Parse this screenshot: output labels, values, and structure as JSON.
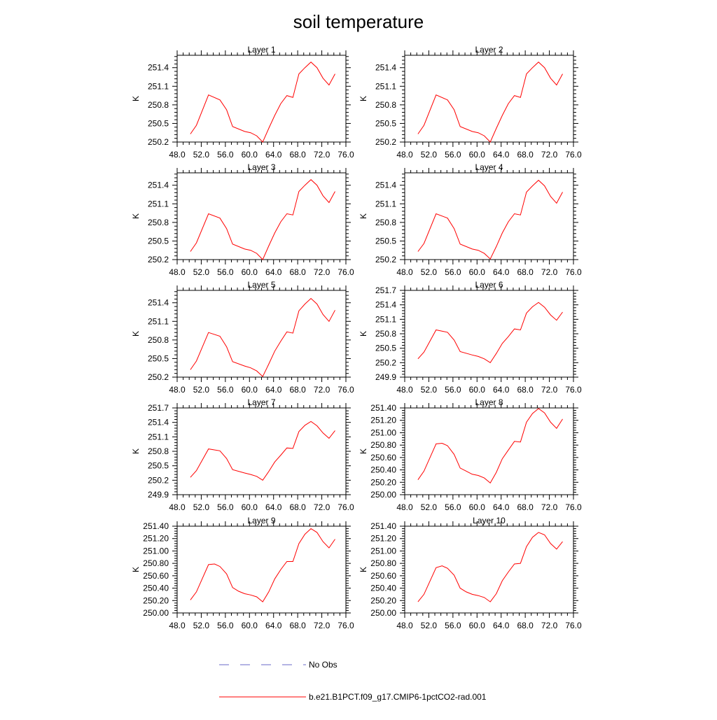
{
  "title": "soil temperature",
  "legend": {
    "obs_label": "No Obs",
    "model_label": "b.e21.B1PCT.f09_g17.CMIP6-1pctCO2-rad.001",
    "obs_color": "#6a6ac8",
    "model_color": "#ff0000"
  },
  "chart_data": [
    {
      "type": "line",
      "title": "Layer 1",
      "ylabel": "K",
      "xlim": [
        48,
        76
      ],
      "ylim": [
        250.2,
        251.6
      ],
      "xticks": [
        "48.0",
        "52.0",
        "56.0",
        "60.0",
        "64.0",
        "68.0",
        "72.0",
        "76.0"
      ],
      "yticks": [
        "250.2",
        "250.5",
        "250.8",
        "251.1",
        "251.4"
      ],
      "x": [
        50.2,
        51.2,
        53.2,
        55.1,
        56.2,
        57.2,
        59.2,
        60.2,
        61.2,
        62.2,
        63.2,
        64.2,
        65.2,
        66.2,
        67.2,
        68.2,
        69.2,
        70.2,
        71.2,
        72.2,
        73.2,
        74.2
      ],
      "series": [
        {
          "name": "b.e21.B1PCT.f09_g17.CMIP6-1pctCO2-rad.001",
          "values": [
            250.33,
            250.47,
            250.96,
            250.88,
            250.72,
            250.45,
            250.37,
            250.35,
            250.3,
            250.2,
            250.42,
            250.63,
            250.82,
            250.95,
            250.92,
            251.3,
            251.4,
            251.49,
            251.4,
            251.23,
            251.12,
            251.3
          ]
        }
      ]
    },
    {
      "type": "line",
      "title": "Layer 2",
      "ylabel": "K",
      "xlim": [
        48,
        76
      ],
      "ylim": [
        250.2,
        251.6
      ],
      "xticks": [
        "48.0",
        "52.0",
        "56.0",
        "60.0",
        "64.0",
        "68.0",
        "72.0",
        "76.0"
      ],
      "yticks": [
        "250.2",
        "250.5",
        "250.8",
        "251.1",
        "251.4"
      ],
      "x": [
        50.2,
        51.2,
        53.2,
        55.1,
        56.2,
        57.2,
        59.2,
        60.2,
        61.2,
        62.2,
        63.2,
        64.2,
        65.2,
        66.2,
        67.2,
        68.2,
        69.2,
        70.2,
        71.2,
        72.2,
        73.2,
        74.2
      ],
      "series": [
        {
          "name": "b.e21.B1PCT.f09_g17.CMIP6-1pctCO2-rad.001",
          "values": [
            250.33,
            250.47,
            250.96,
            250.88,
            250.72,
            250.45,
            250.37,
            250.35,
            250.3,
            250.2,
            250.42,
            250.63,
            250.82,
            250.95,
            250.92,
            251.3,
            251.4,
            251.49,
            251.4,
            251.23,
            251.12,
            251.3
          ]
        }
      ]
    },
    {
      "type": "line",
      "title": "Layer 3",
      "ylabel": "K",
      "xlim": [
        48,
        76
      ],
      "ylim": [
        250.2,
        251.6
      ],
      "xticks": [
        "48.0",
        "52.0",
        "56.0",
        "60.0",
        "64.0",
        "68.0",
        "72.0",
        "76.0"
      ],
      "yticks": [
        "250.2",
        "250.5",
        "250.8",
        "251.1",
        "251.4"
      ],
      "x": [
        50.2,
        51.2,
        53.2,
        55.1,
        56.2,
        57.2,
        59.2,
        60.2,
        61.2,
        62.2,
        63.2,
        64.2,
        65.2,
        66.2,
        67.2,
        68.2,
        69.2,
        70.2,
        71.2,
        72.2,
        73.2,
        74.2
      ],
      "series": [
        {
          "name": "b.e21.B1PCT.f09_g17.CMIP6-1pctCO2-rad.001",
          "values": [
            250.33,
            250.47,
            250.94,
            250.87,
            250.7,
            250.45,
            250.37,
            250.35,
            250.3,
            250.2,
            250.42,
            250.63,
            250.81,
            250.94,
            250.92,
            251.3,
            251.4,
            251.49,
            251.4,
            251.23,
            251.12,
            251.3
          ]
        }
      ]
    },
    {
      "type": "line",
      "title": "Layer 4",
      "ylabel": "K",
      "xlim": [
        48,
        76
      ],
      "ylim": [
        250.2,
        251.6
      ],
      "xticks": [
        "48.0",
        "52.0",
        "56.0",
        "60.0",
        "64.0",
        "68.0",
        "72.0",
        "76.0"
      ],
      "yticks": [
        "250.2",
        "250.5",
        "250.8",
        "251.1",
        "251.4"
      ],
      "x": [
        50.2,
        51.2,
        53.2,
        55.1,
        56.2,
        57.2,
        59.2,
        60.2,
        61.2,
        62.2,
        63.2,
        64.2,
        65.2,
        66.2,
        67.2,
        68.2,
        69.2,
        70.2,
        71.2,
        72.2,
        73.2,
        74.2
      ],
      "series": [
        {
          "name": "b.e21.B1PCT.f09_g17.CMIP6-1pctCO2-rad.001",
          "values": [
            250.33,
            250.46,
            250.94,
            250.87,
            250.7,
            250.45,
            250.37,
            250.35,
            250.3,
            250.21,
            250.41,
            250.63,
            250.81,
            250.94,
            250.92,
            251.29,
            251.39,
            251.48,
            251.39,
            251.22,
            251.11,
            251.29
          ]
        }
      ]
    },
    {
      "type": "line",
      "title": "Layer 5",
      "ylabel": "K",
      "xlim": [
        48,
        76
      ],
      "ylim": [
        250.2,
        251.6
      ],
      "xticks": [
        "48.0",
        "52.0",
        "56.0",
        "60.0",
        "64.0",
        "68.0",
        "72.0",
        "76.0"
      ],
      "yticks": [
        "250.2",
        "250.5",
        "250.8",
        "251.1",
        "251.4"
      ],
      "x": [
        50.2,
        51.2,
        53.2,
        55.1,
        56.2,
        57.2,
        59.2,
        60.2,
        61.2,
        62.2,
        63.2,
        64.2,
        65.2,
        66.2,
        67.2,
        68.2,
        69.2,
        70.2,
        71.2,
        72.2,
        73.2,
        74.2
      ],
      "series": [
        {
          "name": "b.e21.B1PCT.f09_g17.CMIP6-1pctCO2-rad.001",
          "values": [
            250.32,
            250.46,
            250.92,
            250.86,
            250.69,
            250.45,
            250.38,
            250.35,
            250.3,
            250.21,
            250.41,
            250.62,
            250.78,
            250.93,
            250.91,
            251.27,
            251.38,
            251.47,
            251.38,
            251.21,
            251.1,
            251.28
          ]
        }
      ]
    },
    {
      "type": "line",
      "title": "Layer 6",
      "ylabel": "K",
      "xlim": [
        48,
        76
      ],
      "ylim": [
        249.9,
        251.7
      ],
      "xticks": [
        "48.0",
        "52.0",
        "56.0",
        "60.0",
        "64.0",
        "68.0",
        "72.0",
        "76.0"
      ],
      "yticks": [
        "249.9",
        "250.2",
        "250.5",
        "250.8",
        "251.1",
        "251.4",
        "251.7"
      ],
      "x": [
        50.2,
        51.2,
        53.2,
        55.1,
        56.2,
        57.2,
        59.2,
        60.2,
        61.2,
        62.2,
        63.2,
        64.2,
        65.2,
        66.2,
        67.2,
        68.2,
        69.2,
        70.2,
        71.2,
        72.2,
        73.2,
        74.2
      ],
      "series": [
        {
          "name": "b.e21.B1PCT.f09_g17.CMIP6-1pctCO2-rad.001",
          "values": [
            250.28,
            250.42,
            250.88,
            250.83,
            250.67,
            250.43,
            250.36,
            250.33,
            250.28,
            250.2,
            250.39,
            250.6,
            250.74,
            250.9,
            250.88,
            251.23,
            251.36,
            251.45,
            251.35,
            251.19,
            251.08,
            251.25
          ]
        }
      ]
    },
    {
      "type": "line",
      "title": "Layer 7",
      "ylabel": "K",
      "xlim": [
        48,
        76
      ],
      "ylim": [
        249.9,
        251.7
      ],
      "xticks": [
        "48.0",
        "52.0",
        "56.0",
        "60.0",
        "64.0",
        "68.0",
        "72.0",
        "76.0"
      ],
      "yticks": [
        "249.9",
        "250.2",
        "250.5",
        "250.8",
        "251.1",
        "251.4",
        "251.7"
      ],
      "x": [
        50.2,
        51.2,
        53.2,
        55.1,
        56.2,
        57.2,
        59.2,
        60.2,
        61.2,
        62.2,
        63.2,
        64.2,
        65.2,
        66.2,
        67.2,
        68.2,
        69.2,
        70.2,
        71.2,
        72.2,
        73.2,
        74.2
      ],
      "series": [
        {
          "name": "b.e21.B1PCT.f09_g17.CMIP6-1pctCO2-rad.001",
          "values": [
            250.26,
            250.4,
            250.85,
            250.81,
            250.65,
            250.42,
            250.35,
            250.32,
            250.28,
            250.2,
            250.38,
            250.58,
            250.72,
            250.87,
            250.86,
            251.21,
            251.34,
            251.42,
            251.33,
            251.18,
            251.07,
            251.23
          ]
        }
      ]
    },
    {
      "type": "line",
      "title": "Layer 8",
      "ylabel": "K",
      "xlim": [
        48,
        76
      ],
      "ylim": [
        250.0,
        251.4
      ],
      "xticks": [
        "48.0",
        "52.0",
        "56.0",
        "60.0",
        "64.0",
        "68.0",
        "72.0",
        "76.0"
      ],
      "yticks": [
        "250.00",
        "250.20",
        "250.40",
        "250.60",
        "250.80",
        "251.00",
        "251.20",
        "251.40"
      ],
      "x": [
        50.2,
        51.2,
        53.2,
        54.2,
        55.1,
        56.2,
        57.2,
        58.2,
        59.2,
        60.2,
        61.2,
        62.2,
        63.2,
        64.2,
        65.2,
        66.2,
        67.2,
        68.2,
        69.2,
        70.2,
        71.2,
        72.2,
        73.2,
        74.2
      ],
      "series": [
        {
          "name": "b.e21.B1PCT.f09_g17.CMIP6-1pctCO2-rad.001",
          "values": [
            250.24,
            250.38,
            250.82,
            250.83,
            250.79,
            250.65,
            250.43,
            250.38,
            250.33,
            250.31,
            250.27,
            250.19,
            250.36,
            250.58,
            250.72,
            250.86,
            250.85,
            251.17,
            251.31,
            251.39,
            251.32,
            251.17,
            251.07,
            251.22
          ]
        }
      ]
    },
    {
      "type": "line",
      "title": "Layer 9",
      "ylabel": "K",
      "xlim": [
        48,
        76
      ],
      "ylim": [
        250.0,
        251.4
      ],
      "xticks": [
        "48.0",
        "52.0",
        "56.0",
        "60.0",
        "64.0",
        "68.0",
        "72.0",
        "76.0"
      ],
      "yticks": [
        "250.00",
        "250.20",
        "250.40",
        "250.60",
        "250.80",
        "251.00",
        "251.20",
        "251.40"
      ],
      "x": [
        50.2,
        51.2,
        53.2,
        54.2,
        55.1,
        56.2,
        57.2,
        58.2,
        59.2,
        60.2,
        61.2,
        62.2,
        63.2,
        64.2,
        65.2,
        66.2,
        67.2,
        68.2,
        69.2,
        70.2,
        71.2,
        72.2,
        73.2,
        74.2
      ],
      "series": [
        {
          "name": "b.e21.B1PCT.f09_g17.CMIP6-1pctCO2-rad.001",
          "values": [
            250.21,
            250.34,
            250.78,
            250.79,
            250.75,
            250.63,
            250.41,
            250.35,
            250.31,
            250.29,
            250.26,
            250.18,
            250.34,
            250.55,
            250.7,
            250.83,
            250.83,
            251.12,
            251.27,
            251.36,
            251.3,
            251.15,
            251.05,
            251.19
          ]
        }
      ]
    },
    {
      "type": "line",
      "title": "Layer 10",
      "ylabel": "K",
      "xlim": [
        48,
        76
      ],
      "ylim": [
        250.0,
        251.4
      ],
      "xticks": [
        "48.0",
        "52.0",
        "56.0",
        "60.0",
        "64.0",
        "68.0",
        "72.0",
        "76.0"
      ],
      "yticks": [
        "250.00",
        "250.20",
        "250.40",
        "250.60",
        "250.80",
        "251.00",
        "251.20",
        "251.40"
      ],
      "x": [
        50.2,
        51.2,
        53.2,
        54.2,
        55.1,
        56.2,
        57.2,
        58.2,
        59.2,
        60.2,
        61.2,
        62.2,
        63.2,
        64.2,
        65.2,
        66.2,
        67.2,
        68.2,
        69.2,
        70.2,
        71.2,
        72.2,
        73.2,
        74.2
      ],
      "series": [
        {
          "name": "b.e21.B1PCT.f09_g17.CMIP6-1pctCO2-rad.001",
          "values": [
            250.18,
            250.3,
            250.73,
            250.76,
            250.72,
            250.61,
            250.4,
            250.34,
            250.3,
            250.28,
            250.25,
            250.18,
            250.31,
            250.52,
            250.66,
            250.79,
            250.8,
            251.07,
            251.22,
            251.3,
            251.26,
            251.12,
            251.03,
            251.15
          ]
        }
      ]
    }
  ]
}
